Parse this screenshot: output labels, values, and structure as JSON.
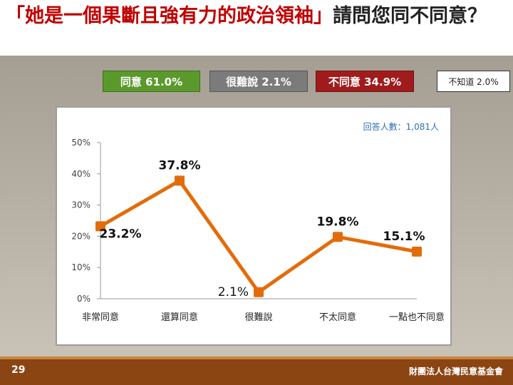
{
  "header": {
    "title_red": "「她是一個果斷且強有力的政治領袖」",
    "title_rest": "請問您同不同意？"
  },
  "summary": {
    "agree": "同意 61.0%",
    "hard_to_say": "很難說 2.1%",
    "disagree": "不同意 34.9%",
    "dont_know": "不知道 2.0%"
  },
  "chart_data": {
    "type": "line",
    "categories": [
      "非常同意",
      "還算同意",
      "很難說",
      "不太同意",
      "一點也不同意"
    ],
    "values": [
      23.2,
      37.8,
      2.1,
      19.8,
      15.1
    ],
    "data_labels": [
      "23.2%",
      "37.8%",
      "2.1%",
      "19.8%",
      "15.1%"
    ],
    "y_ticks": [
      "0%",
      "10%",
      "20%",
      "30%",
      "40%",
      "50%"
    ],
    "ylim": [
      0,
      50
    ],
    "annotation": "回答人數：1,081人",
    "line_color": "#e36c0a",
    "grid": false
  },
  "footer": {
    "page_number": "29",
    "organization": "財團法人台灣民意基金會"
  }
}
